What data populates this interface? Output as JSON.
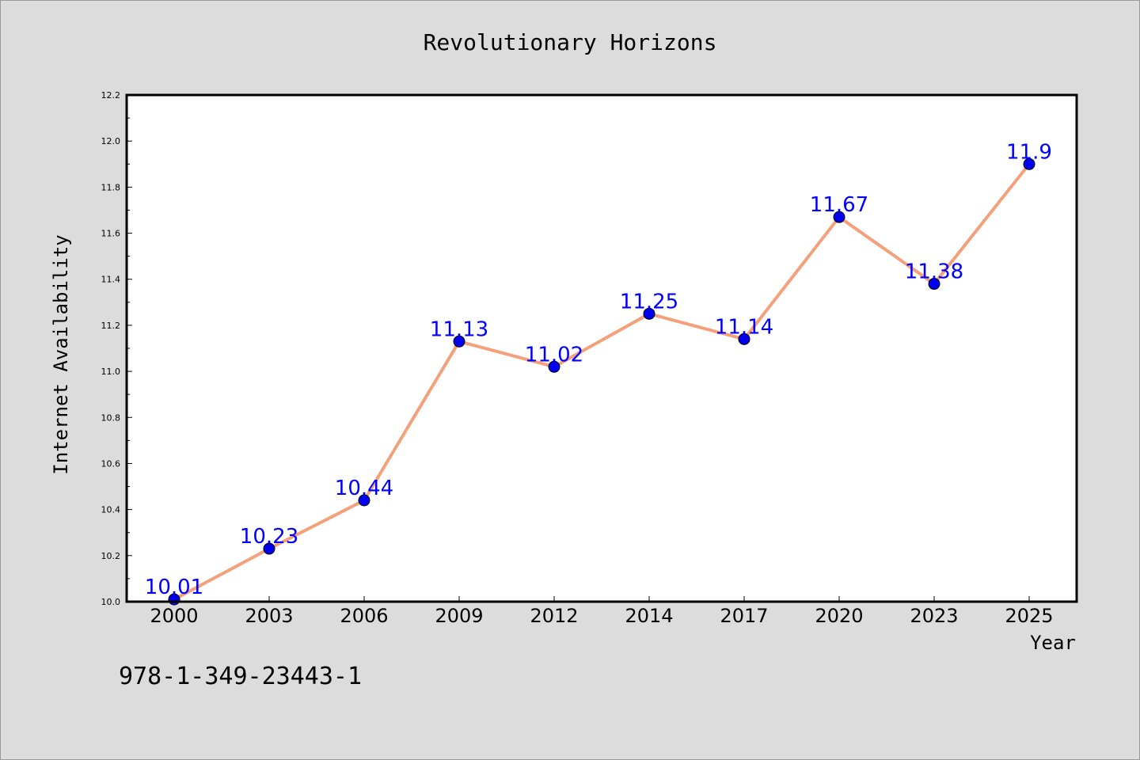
{
  "chart_data": {
    "type": "line",
    "title": "Revolutionary Horizons",
    "xlabel": "Year",
    "ylabel": "Internet Availability",
    "categories": [
      "2000",
      "2003",
      "2006",
      "2009",
      "2012",
      "2014",
      "2017",
      "2020",
      "2023",
      "2025"
    ],
    "series": [
      {
        "values": [
          10.01,
          10.23,
          10.44,
          11.13,
          11.02,
          11.25,
          11.14,
          11.67,
          11.38,
          11.9
        ],
        "labels": [
          "10.01",
          "10.23",
          "10.44",
          "11.13",
          "11.02",
          "11.25",
          "11.14",
          "11.67",
          "11.38",
          "11.9"
        ],
        "line_color": "#f4a07a",
        "marker_color": "#0000ee"
      }
    ],
    "ylim": [
      10.0,
      12.2
    ],
    "yticks": [
      "10.0",
      "10.2",
      "10.4",
      "10.6",
      "10.8",
      "11.0",
      "11.2",
      "11.4",
      "11.6",
      "11.8",
      "12.0",
      "12.2"
    ],
    "grid": false,
    "legend": "none"
  },
  "annotation": "978-1-349-23443-1"
}
